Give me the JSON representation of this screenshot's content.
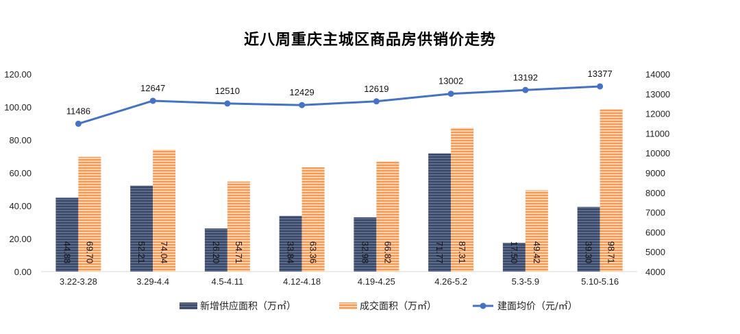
{
  "chart_data": {
    "type": "bar",
    "title": "近八周重庆主城区商品房供销价走势",
    "categories": [
      "3.22-3.28",
      "3.29-4.4",
      "4.5-4.11",
      "4.12-4.18",
      "4.19-4.25",
      "4.26-5.2",
      "5.3-5.9",
      "5.10-5.16"
    ],
    "y_left": {
      "ylim": [
        0,
        120
      ],
      "ticks": [
        "0.00",
        "20.00",
        "40.00",
        "60.00",
        "80.00",
        "100.00",
        "120.00"
      ]
    },
    "y_right": {
      "ylim": [
        4000,
        14000
      ],
      "ticks": [
        "4000",
        "5000",
        "6000",
        "7000",
        "8000",
        "9000",
        "10000",
        "11000",
        "12000",
        "13000",
        "14000"
      ]
    },
    "series": [
      {
        "name": "新增供应面积（万㎡）",
        "kind": "bar",
        "axis": "left",
        "color": "#44546A",
        "values": [
          44.88,
          52.21,
          26.2,
          33.84,
          32.98,
          71.77,
          17.5,
          39.3
        ],
        "labels": [
          "44.88",
          "52.21",
          "26.20",
          "33.84",
          "32.98",
          "71.77",
          "17.50",
          "39.30"
        ]
      },
      {
        "name": "成交面积（万㎡）",
        "kind": "bar",
        "axis": "left",
        "color": "#F4A86A",
        "values": [
          69.7,
          74.04,
          54.71,
          63.36,
          66.82,
          87.31,
          49.42,
          98.71
        ],
        "labels": [
          "69.70",
          "74.04",
          "54.71",
          "63.36",
          "66.82",
          "87.31",
          "49.42",
          "98.71"
        ]
      },
      {
        "name": "建面均价（元/㎡）",
        "kind": "line",
        "axis": "right",
        "color": "#4472C4",
        "values": [
          11486,
          12647,
          12510,
          12429,
          12619,
          13002,
          13192,
          13377
        ],
        "labels": [
          "11486",
          "12647",
          "12510",
          "12429",
          "12619",
          "13002",
          "13192",
          "13377"
        ]
      }
    ],
    "grid": false,
    "legend": "bottom"
  }
}
